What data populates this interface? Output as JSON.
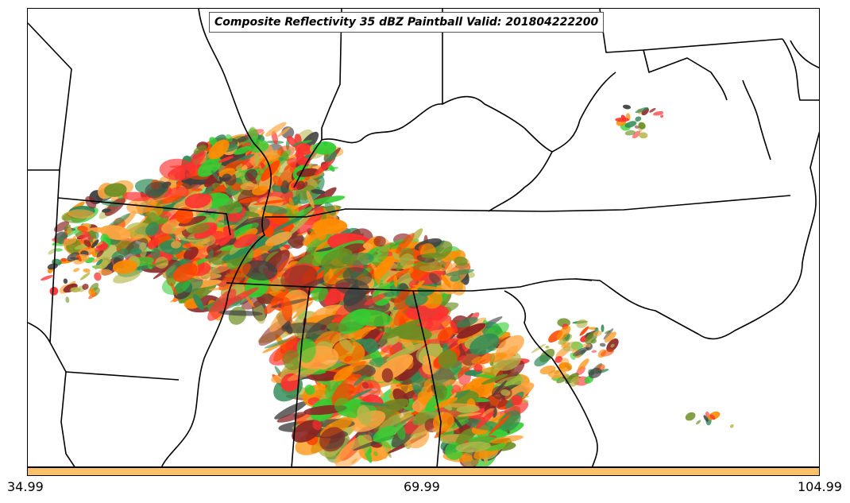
{
  "title": "Composite Reflectivity 35 dBZ Paintball Valid: 201804222200",
  "colorbar": {
    "ticks": [
      "34.99",
      "69.99",
      "104.99"
    ],
    "color": "#FDC16A"
  },
  "paintball_colors": [
    "#ff3030",
    "#8b2323",
    "#ff8c00",
    "#ffa540",
    "#6b8e23",
    "#2e8b57",
    "#32cd32",
    "#b5b54a",
    "#404040",
    "#ff4500"
  ]
}
